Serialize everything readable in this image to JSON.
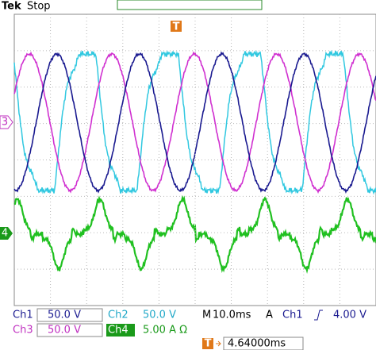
{
  "header": {
    "brand": "Tek",
    "status": "Stop",
    "trigger_position": "T"
  },
  "markers": {
    "ch3": "3",
    "ch4": "4"
  },
  "readout": {
    "ch1_label": "Ch1",
    "ch1_scale": "50.0 V",
    "ch2_label": "Ch2",
    "ch2_scale": "50.0 V",
    "time_label": "M",
    "time_scale": "10.0ms",
    "trigger_mode": "A",
    "trigger_source": "Ch1",
    "trigger_level": "4.00 V",
    "ch3_label": "Ch3",
    "ch3_scale": "50.0 V",
    "ch4_label": "Ch4",
    "ch4_scale": "5.00 A Ω",
    "trigger_marker": "T",
    "delay": "4.64000ms"
  }
}
